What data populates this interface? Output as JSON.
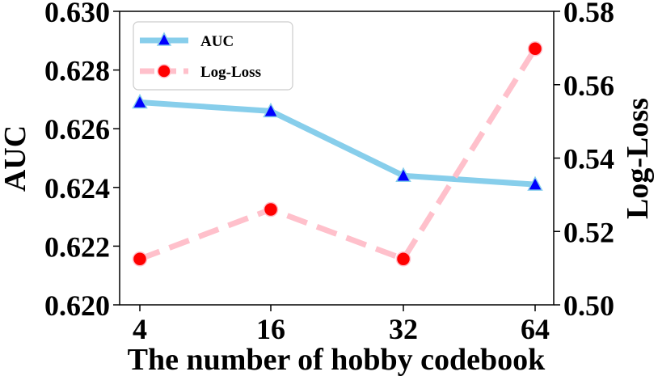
{
  "chart_data": {
    "type": "line",
    "xlabel": "The number of hobby codebook",
    "categories": [
      "4",
      "16",
      "32",
      "64"
    ],
    "y_left": {
      "label": "AUC",
      "ylim": [
        0.62,
        0.63
      ],
      "ticks": [
        "0.620",
        "0.622",
        "0.624",
        "0.626",
        "0.628",
        "0.630"
      ]
    },
    "y_right": {
      "label": "Log-Loss",
      "ylim": [
        0.5,
        0.58
      ],
      "ticks": [
        "0.50",
        "0.52",
        "0.54",
        "0.56",
        "0.58"
      ]
    },
    "series": [
      {
        "name": "AUC",
        "axis": "left",
        "values": [
          0.6269,
          0.6266,
          0.6244,
          0.6241
        ],
        "line_color": "#87ceeb",
        "marker": "triangle",
        "marker_color": "#0000ff",
        "line_style": "solid"
      },
      {
        "name": "Log-Loss",
        "axis": "right",
        "values": [
          0.5125,
          0.526,
          0.5125,
          0.5698
        ],
        "line_color": "#ffc0cb",
        "marker": "circle",
        "marker_color": "#ff0000",
        "line_style": "dashed"
      }
    ],
    "legend_position": "top-left",
    "grid": false
  }
}
